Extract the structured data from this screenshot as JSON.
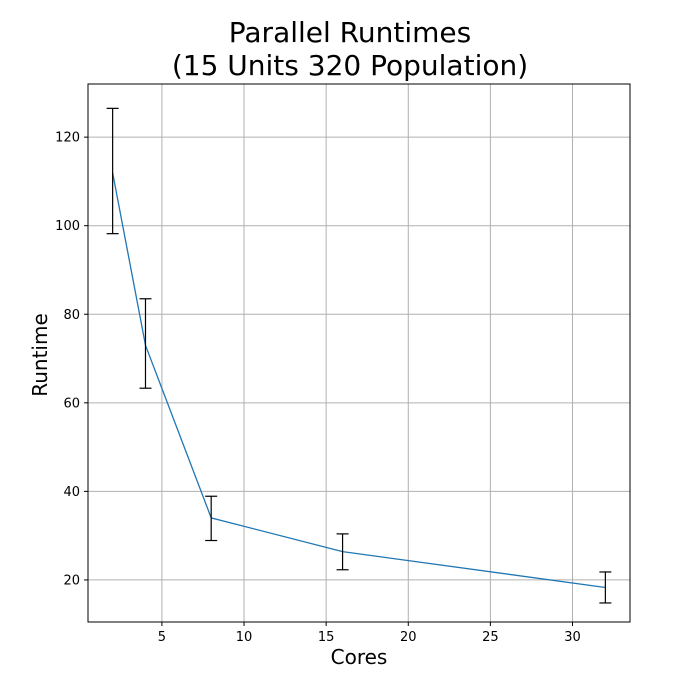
{
  "chart_data": {
    "type": "line",
    "title_line1": "Parallel Runtimes",
    "title_line2": "(15 Units 320 Population)",
    "xlabel": "Cores",
    "ylabel": "Runtime",
    "x": [
      2,
      4,
      8,
      16,
      32
    ],
    "series": [
      {
        "values": [
          112.0,
          73.0,
          34.0,
          26.4,
          18.3
        ],
        "error_low": [
          98.2,
          63.3,
          28.9,
          22.3,
          14.8
        ],
        "error_high": [
          126.5,
          83.5,
          38.9,
          30.4,
          21.8
        ],
        "color": "#1f77b4"
      }
    ],
    "xlim": [
      0.5,
      33.5
    ],
    "ylim": [
      10.5,
      132.0
    ],
    "xticks": [
      5,
      10,
      15,
      20,
      25,
      30
    ],
    "yticks": [
      20,
      40,
      60,
      80,
      100,
      120
    ],
    "grid": true,
    "legend": "none",
    "errorbar_color": "#000000"
  }
}
